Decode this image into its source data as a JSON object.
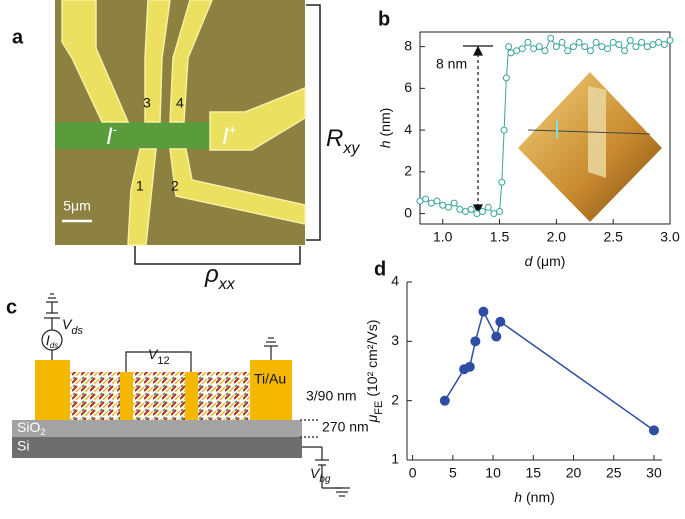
{
  "panel_labels": [
    "a",
    "b",
    "c",
    "d"
  ],
  "micrograph": {
    "contacts": [
      "1",
      "2",
      "3",
      "4"
    ],
    "current_in": {
      "symbol": "I",
      "sup": "-"
    },
    "current_out": {
      "symbol": "I",
      "sup": "+"
    },
    "scale_bar": "5μm",
    "rxy": {
      "symbol": "R",
      "sub": "xy"
    },
    "rhoxx": {
      "symbol": "ρ",
      "sub": "xx"
    }
  },
  "schematic": {
    "vds": {
      "symbol": "V",
      "sub": "ds"
    },
    "ids": {
      "symbol": "I",
      "sub": "ds"
    },
    "v12": {
      "symbol": "V",
      "sub": "12"
    },
    "contact_material": "Ti/Au",
    "contact_thickness": "3/90 nm",
    "oxide": {
      "symbol": "SiO",
      "sub": "2"
    },
    "oxide_thickness": "270 nm",
    "substrate": "Si",
    "vbg": {
      "symbol": "V",
      "sub": "bg"
    }
  },
  "chart_data": [
    {
      "type": "line",
      "xlabel": {
        "symbol": "d",
        "unit": "(μm)"
      },
      "ylabel": {
        "symbol": "h",
        "unit": "(nm)"
      },
      "annotation": "8 nm",
      "x": [
        0.8,
        0.85,
        0.9,
        0.95,
        1.0,
        1.05,
        1.1,
        1.15,
        1.2,
        1.25,
        1.3,
        1.35,
        1.4,
        1.45,
        1.5,
        1.52,
        1.54,
        1.56,
        1.58,
        1.6,
        1.65,
        1.7,
        1.75,
        1.8,
        1.85,
        1.9,
        1.95,
        2.0,
        2.05,
        2.1,
        2.15,
        2.2,
        2.25,
        2.3,
        2.35,
        2.4,
        2.45,
        2.5,
        2.55,
        2.6,
        2.65,
        2.7,
        2.75,
        2.8,
        2.85,
        2.9,
        2.95,
        3.0
      ],
      "values": [
        0.6,
        0.7,
        0.5,
        0.6,
        0.4,
        0.3,
        0.5,
        0.2,
        0.1,
        0.2,
        0.0,
        0.1,
        0.3,
        0.0,
        0.1,
        1.5,
        4.0,
        6.5,
        8.0,
        7.7,
        7.8,
        7.9,
        8.2,
        7.9,
        8.0,
        7.8,
        8.4,
        8.0,
        8.2,
        7.8,
        8.0,
        8.2,
        8.0,
        7.8,
        8.2,
        8.0,
        7.9,
        8.2,
        8.1,
        7.8,
        8.3,
        8.0,
        8.2,
        8.0,
        8.1,
        8.2,
        8.1,
        8.3
      ],
      "color": "#3aa39a",
      "marker_filled": false,
      "frame": true,
      "xlim": [
        0.8,
        3.0
      ],
      "ylim": [
        -0.5,
        8.7
      ],
      "xticks": [
        {
          "value": 1,
          "label": "1.0"
        },
        1.5,
        {
          "value": 2,
          "label": "2.0"
        },
        2.5,
        {
          "value": 3,
          "label": "3.0"
        }
      ],
      "yticks": [
        0,
        2,
        4,
        6,
        8
      ]
    },
    {
      "type": "line",
      "xlabel": {
        "symbol": "h",
        "unit": "(nm)"
      },
      "ylabel": {
        "symbol": "μ",
        "sub": "FE",
        "unit": "(10² cm²/Vs)"
      },
      "x": [
        4.0,
        6.4,
        7.1,
        7.8,
        8.8,
        10.4,
        10.9,
        30
      ],
      "values": [
        2.0,
        2.53,
        2.57,
        3.0,
        3.5,
        3.08,
        3.33,
        1.5
      ],
      "color": "#2e4ea3",
      "marker_filled": true,
      "frame": false,
      "xlim": [
        -0.7,
        31
      ],
      "ylim": [
        1,
        4
      ],
      "xticks": [
        0,
        5,
        10,
        15,
        20,
        25,
        30
      ],
      "yticks": [
        1,
        2,
        3,
        4
      ]
    }
  ]
}
